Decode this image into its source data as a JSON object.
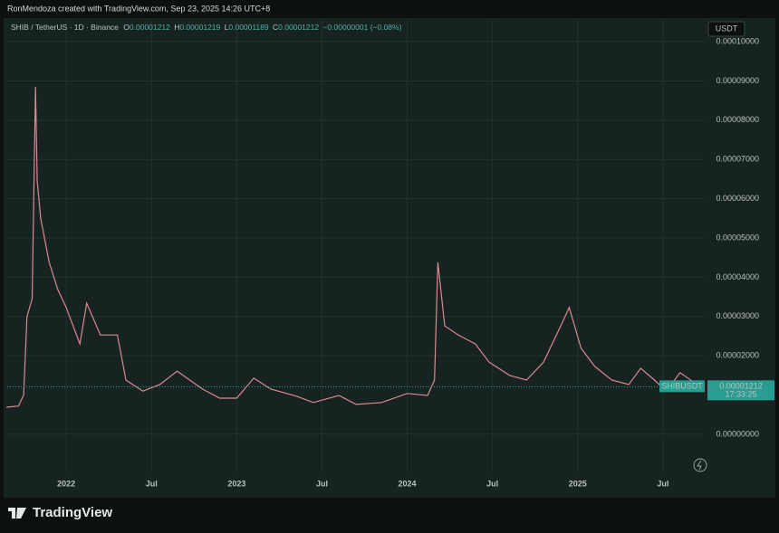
{
  "header": {
    "attribution": "RonMendoza created with TradingView.com, Sep 23, 2025 14:26 UTC+8",
    "symbol": "SHIB / TetherUS · 1D · Binance",
    "open_label": "O",
    "open": "0.00001212",
    "high_label": "H",
    "high": "0.00001219",
    "low_label": "L",
    "low": "0.00001189",
    "close_label": "C",
    "close": "0.00001212",
    "change": "−0.00000001 (−0.08%)",
    "currency": "USDT"
  },
  "chart_data": {
    "type": "line",
    "x": [
      2021.65,
      2021.72,
      2021.75,
      2021.77,
      2021.8,
      2021.82,
      2021.83,
      2021.85,
      2021.9,
      2021.95,
      2022.0,
      2022.08,
      2022.12,
      2022.2,
      2022.3,
      2022.35,
      2022.45,
      2022.55,
      2022.65,
      2022.8,
      2022.9,
      2023.0,
      2023.1,
      2023.2,
      2023.35,
      2023.45,
      2023.6,
      2023.7,
      2023.85,
      2024.0,
      2024.12,
      2024.16,
      2024.18,
      2024.22,
      2024.3,
      2024.4,
      2024.48,
      2024.6,
      2024.7,
      2024.8,
      2024.9,
      2024.95,
      2025.02,
      2025.1,
      2025.2,
      2025.3,
      2025.37,
      2025.45,
      2025.52,
      2025.6,
      2025.7,
      2025.73
    ],
    "series": [
      {
        "name": "SHIBUSDT",
        "color": "#d98a92",
        "values": [
          6.9e-06,
          7.2e-06,
          1e-05,
          3e-05,
          3.45e-05,
          8.85e-05,
          6.45e-05,
          5.5e-05,
          4.38e-05,
          3.69e-05,
          3.23e-05,
          2.3e-05,
          3.34e-05,
          2.53e-05,
          2.53e-05,
          1.38e-05,
          1.1e-05,
          1.27e-05,
          1.61e-05,
          1.15e-05,
          9.2e-06,
          9.2e-06,
          1.43e-05,
          1.15e-05,
          9.7e-06,
          8.1e-06,
          9.9e-06,
          7.6e-06,
          8.1e-06,
          1.04e-05,
          9.9e-06,
          1.38e-05,
          4.38e-05,
          2.76e-05,
          2.53e-05,
          2.3e-05,
          1.84e-05,
          1.5e-05,
          1.38e-05,
          1.84e-05,
          2.76e-05,
          3.23e-05,
          2.19e-05,
          1.73e-05,
          1.38e-05,
          1.27e-05,
          1.68e-05,
          1.38e-05,
          1.1e-05,
          1.57e-05,
          1.27e-05,
          1.212e-05
        ]
      }
    ],
    "last_price": {
      "value": 1.212e-05,
      "label": "0.00001212"
    },
    "countdown": "17:33:25",
    "xlim": [
      2021.654,
      2025.745
    ],
    "xticks": [
      2022,
      {
        "value": 2022.5,
        "label": "Jul"
      },
      2023,
      {
        "value": 2023.5,
        "label": "Jul"
      },
      2024,
      {
        "value": 2024.5,
        "label": "Jul"
      },
      2025,
      {
        "value": 2025.5,
        "label": "Jul"
      }
    ],
    "ylim": [
      -9.7e-06,
      0.0001014
    ],
    "yticks": [
      {
        "value": 0,
        "label": "0.00000000"
      },
      {
        "value": 2e-05,
        "label": "0.00002000"
      },
      {
        "value": 3e-05,
        "label": "0.00003000"
      },
      {
        "value": 4e-05,
        "label": "0.00004000"
      },
      {
        "value": 5e-05,
        "label": "0.00005000"
      },
      {
        "value": 6e-05,
        "label": "0.00006000"
      },
      {
        "value": 7e-05,
        "label": "0.00007000"
      },
      {
        "value": 8e-05,
        "label": "0.00008000"
      },
      {
        "value": 9e-05,
        "label": "0.00009000"
      },
      {
        "value": 0.0001,
        "label": "0.00010000"
      }
    ],
    "grid": true,
    "log_scale": false
  },
  "footer": {
    "brand": "TradingView"
  }
}
